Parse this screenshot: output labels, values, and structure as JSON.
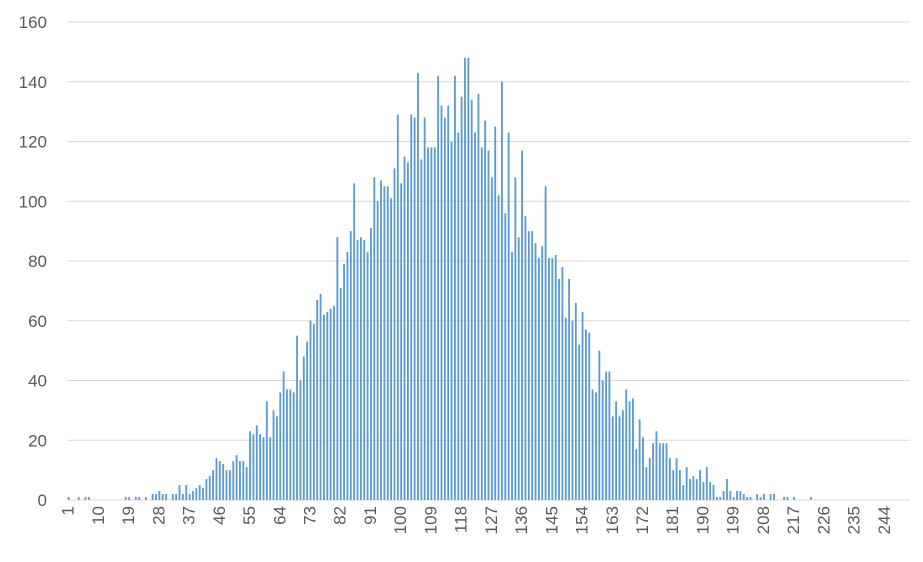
{
  "chart_data": {
    "type": "bar",
    "title": "",
    "xlabel": "",
    "ylabel": "",
    "ylim": [
      0,
      160
    ],
    "yticks": [
      0,
      20,
      40,
      60,
      80,
      100,
      120,
      140,
      160
    ],
    "grid": true,
    "legend": "none",
    "bar_color": "#5B9BD5",
    "grid_color": "#D9D9D9",
    "tick_color": "#595959",
    "x_start": 1,
    "x_end": 248,
    "xtick_labels": [
      "1",
      "10",
      "19",
      "28",
      "37",
      "46",
      "55",
      "64",
      "73",
      "82",
      "91",
      "100",
      "109",
      "118",
      "127",
      "136",
      "145",
      "154",
      "163",
      "172",
      "181",
      "190",
      "199",
      "208",
      "217",
      "226",
      "235",
      "244"
    ],
    "values": [
      1,
      0,
      0,
      1,
      0,
      1,
      1,
      0,
      0,
      0,
      0,
      0,
      0,
      0,
      0,
      0,
      0,
      1,
      1,
      0,
      1,
      1,
      0,
      1,
      0,
      2,
      2,
      3,
      2,
      2,
      0,
      2,
      2,
      5,
      2,
      5,
      2,
      3,
      4,
      5,
      4,
      7,
      8,
      10,
      14,
      13,
      12,
      10,
      10,
      13,
      15,
      13,
      13,
      11,
      23,
      22,
      25,
      22,
      21,
      33,
      21,
      30,
      28,
      36,
      43,
      37,
      37,
      36,
      55,
      40,
      48,
      53,
      60,
      59,
      67,
      69,
      62,
      63,
      64,
      65,
      88,
      71,
      79,
      83,
      90,
      106,
      87,
      88,
      87,
      83,
      91,
      108,
      100,
      107,
      105,
      105,
      101,
      111,
      129,
      106,
      115,
      113,
      129,
      128,
      143,
      114,
      128,
      118,
      118,
      118,
      142,
      132,
      128,
      132,
      120,
      142,
      123,
      135,
      148,
      148,
      134,
      123,
      136,
      118,
      127,
      117,
      108,
      125,
      102,
      140,
      96,
      123,
      83,
      108,
      88,
      117,
      95,
      90,
      90,
      86,
      81,
      85,
      105,
      81,
      81,
      82,
      74,
      78,
      61,
      74,
      60,
      66,
      52,
      63,
      57,
      56,
      37,
      36,
      50,
      40,
      43,
      43,
      28,
      33,
      28,
      30,
      37,
      33,
      34,
      17,
      27,
      21,
      11,
      14,
      19,
      23,
      19,
      19,
      19,
      14,
      10,
      14,
      10,
      5,
      11,
      7,
      8,
      7,
      10,
      6,
      11,
      6,
      5,
      1,
      1,
      3,
      7,
      3,
      1,
      3,
      3,
      2,
      1,
      1,
      0,
      2,
      1,
      2,
      0,
      2,
      2,
      0,
      0,
      1,
      1,
      0,
      1,
      0,
      0,
      0,
      0,
      1,
      0,
      0,
      0,
      0,
      0,
      0,
      0,
      0,
      0,
      0,
      0,
      0,
      0,
      0,
      0,
      0,
      0,
      0,
      0,
      0,
      0,
      0,
      0,
      0,
      0,
      0,
      0,
      0,
      0
    ]
  }
}
